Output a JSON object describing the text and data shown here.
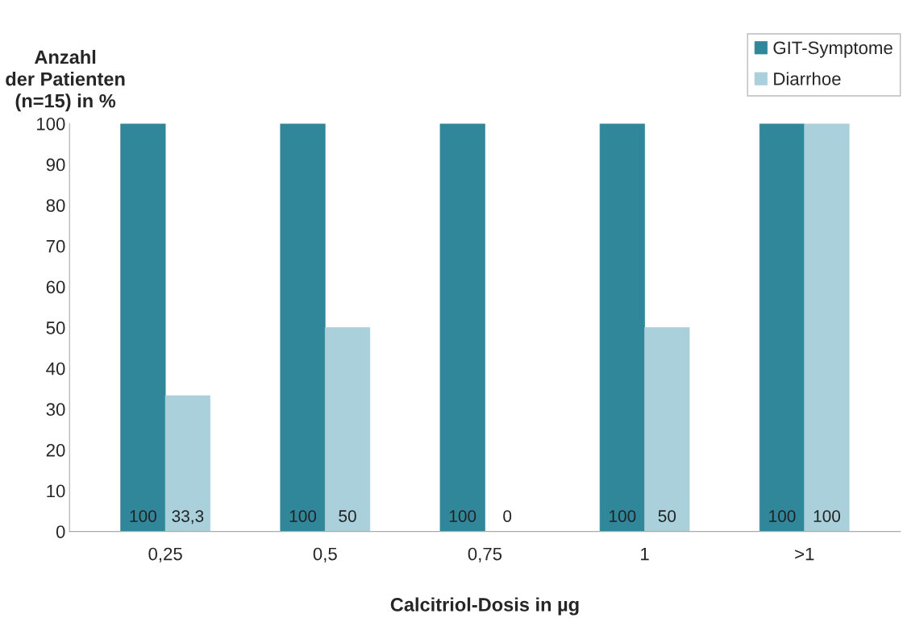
{
  "chart_data": {
    "type": "bar",
    "ylabel": "Anzahl\nder Patienten\n(n=15) in %",
    "xlabel": "Calcitriol-Dosis in µg",
    "categories": [
      "0,25",
      "0,5",
      "0,75",
      "1",
      ">1"
    ],
    "series": [
      {
        "name": "GIT-Symptome",
        "color": "#31879a",
        "values": [
          100,
          100,
          100,
          100,
          100
        ],
        "value_labels": [
          "100",
          "100",
          "100",
          "100",
          "100"
        ]
      },
      {
        "name": "Diarrhoe",
        "color": "#a9d0db",
        "values": [
          33.3,
          50,
          0,
          50,
          100
        ],
        "value_labels": [
          "33,3",
          "50",
          "0",
          "50",
          "100"
        ]
      }
    ],
    "ylim": [
      0,
      100
    ],
    "yticks": [
      0,
      10,
      20,
      30,
      40,
      50,
      60,
      70,
      80,
      90,
      100
    ],
    "grid": false,
    "legend": "top right"
  }
}
